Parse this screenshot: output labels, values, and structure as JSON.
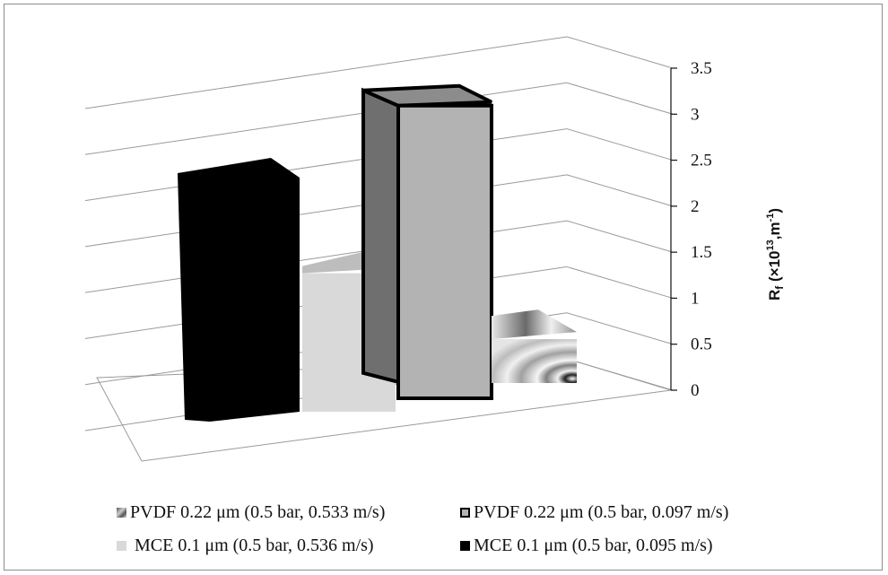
{
  "chart_data": {
    "type": "bar",
    "projection": "3d-column",
    "ylabel_main": "R",
    "ylabel_sub": "f",
    "ylabel_rest": " (×10",
    "ylabel_sup1": "13",
    "ylabel_tail": ",m",
    "ylabel_sup2": "-1",
    "ylabel_close": ")",
    "ylim": [
      0,
      3.5
    ],
    "yticks": [
      "0",
      "0.5",
      "1",
      "1.5",
      "2",
      "2.5",
      "3",
      "3.5"
    ],
    "grid": true,
    "legend_position": "bottom",
    "series": [
      {
        "name": "MCE 0.1 μm (0.5 bar, 0.095 m/s)",
        "value": 2.7,
        "color": "#000000"
      },
      {
        "name": "MCE 0.1 μm (0.5 bar, 0.536 m/s)",
        "value": 1.7,
        "color": "#d9d9d9"
      },
      {
        "name": "PVDF 0.22 μm (0.5 bar, 0.097 m/s)",
        "value": 3.2,
        "color": "#b3b3b3"
      },
      {
        "name": "PVDF 0.22 μm (0.5 bar, 0.533 m/s)",
        "value": 0.75,
        "color": "#9a9a9a"
      }
    ],
    "legend_order": [
      3,
      2,
      1,
      0
    ]
  }
}
